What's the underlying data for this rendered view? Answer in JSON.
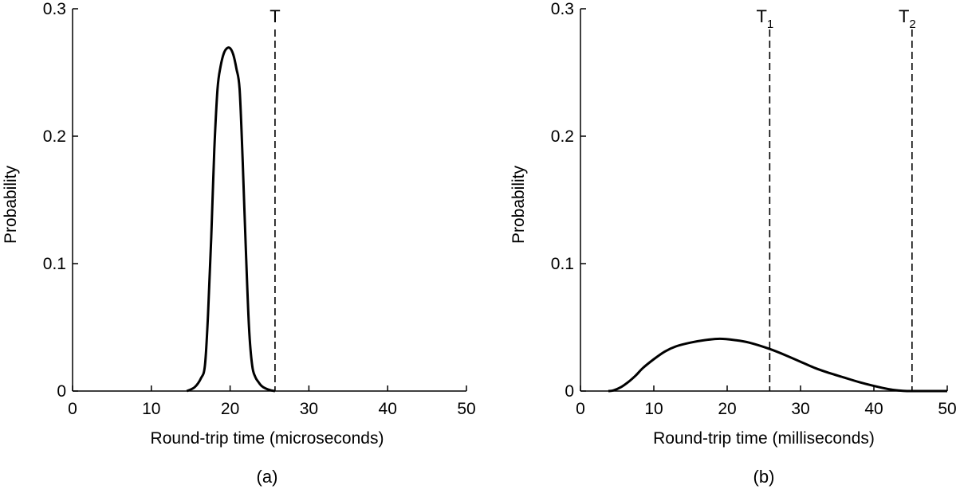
{
  "chart_data": [
    {
      "type": "line",
      "panel_label": "(a)",
      "xlabel": "Round-trip time (microseconds)",
      "ylabel": "Probability",
      "xlim": [
        0,
        50
      ],
      "ylim": [
        0,
        0.3
      ],
      "x_ticks": [
        0,
        10,
        20,
        30,
        40,
        50
      ],
      "x_tick_labels": [
        "0",
        "10",
        "20",
        "30",
        "40",
        "50"
      ],
      "y_ticks": [
        0,
        0.1,
        0.2,
        0.3
      ],
      "y_tick_labels": [
        "0",
        "0.1",
        "0.2",
        "0.3"
      ],
      "grid": false,
      "series": [
        {
          "x": [
            14.5,
            15.5,
            16.3,
            16.8,
            17.2,
            17.6,
            18.0,
            18.4,
            18.8,
            19.2,
            19.6,
            20.0,
            20.4,
            20.8,
            21.2,
            21.6,
            22.0,
            22.4,
            22.8,
            23.2,
            23.6,
            24.0,
            24.5,
            25.2,
            25.7
          ],
          "y": [
            0,
            0.003,
            0.01,
            0.02,
            0.06,
            0.12,
            0.19,
            0.237,
            0.255,
            0.265,
            0.269,
            0.269,
            0.264,
            0.253,
            0.237,
            0.18,
            0.11,
            0.05,
            0.02,
            0.011,
            0.007,
            0.004,
            0.002,
            0.0005,
            0
          ]
        }
      ],
      "markers": [
        {
          "x": 25.7,
          "label": "T",
          "subscript": ""
        }
      ]
    },
    {
      "type": "line",
      "panel_label": "(b)",
      "xlabel": "Round-trip time (milliseconds)",
      "ylabel": "Probability",
      "xlim": [
        0,
        50
      ],
      "ylim": [
        0,
        0.3
      ],
      "x_ticks": [
        0,
        10,
        20,
        30,
        40,
        50
      ],
      "x_tick_labels": [
        "0",
        "10",
        "20",
        "30",
        "40",
        "50"
      ],
      "y_ticks": [
        0,
        0.1,
        0.2,
        0.3
      ],
      "y_tick_labels": [
        "0",
        "0.1",
        "0.2",
        "0.3"
      ],
      "grid": false,
      "series": [
        {
          "x": [
            3.8,
            4.5,
            5.5,
            6.5,
            7.5,
            8.5,
            10,
            11.5,
            13,
            15,
            17,
            19,
            21,
            23,
            25.8,
            28,
            30,
            32,
            34,
            36,
            38,
            40,
            42,
            43.5,
            44.5,
            45.5,
            47,
            50
          ],
          "y": [
            0,
            0.0005,
            0.003,
            0.007,
            0.012,
            0.018,
            0.025,
            0.031,
            0.035,
            0.038,
            0.04,
            0.041,
            0.04,
            0.038,
            0.033,
            0.028,
            0.023,
            0.018,
            0.014,
            0.0105,
            0.007,
            0.004,
            0.0015,
            0.0004,
            0,
            0,
            0,
            0
          ]
        }
      ],
      "markers": [
        {
          "x": 25.8,
          "label": "T",
          "subscript": "1"
        },
        {
          "x": 45.2,
          "label": "T",
          "subscript": "2"
        }
      ]
    }
  ]
}
